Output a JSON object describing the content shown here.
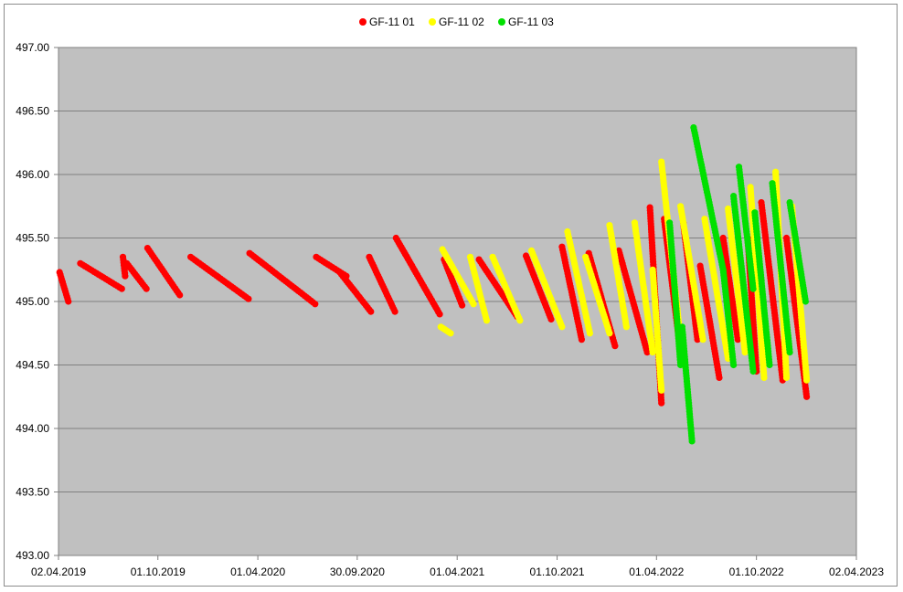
{
  "chart_data": {
    "type": "scatter",
    "title": "",
    "xlabel": "",
    "ylabel": "",
    "x_axis": {
      "type": "date",
      "min": "2019-04-02",
      "max": "2023-04-02",
      "ticks": [
        "02.04.2019",
        "01.10.2019",
        "01.04.2020",
        "30.09.2020",
        "01.04.2021",
        "01.10.2021",
        "01.04.2022",
        "01.10.2022",
        "02.04.2023"
      ]
    },
    "y_axis": {
      "min": 493.0,
      "max": 497.0,
      "step": 0.5,
      "ticks": [
        "493.00",
        "493.50",
        "494.00",
        "494.50",
        "495.00",
        "495.50",
        "496.00",
        "496.50",
        "497.00"
      ]
    },
    "grid": "horizontal",
    "plot_background": "#c0c0c0",
    "legend_position": "top",
    "series": [
      {
        "name": "GF-11 01",
        "color": "#ff0000",
        "segments": [
          [
            [
              "2019-04-04",
              495.23
            ],
            [
              "2019-04-20",
              495.0
            ]
          ],
          [
            [
              "2019-05-12",
              495.3
            ],
            [
              "2019-07-27",
              495.1
            ]
          ],
          [
            [
              "2019-07-29",
              495.35
            ],
            [
              "2019-08-02",
              495.2
            ]
          ],
          [
            [
              "2019-08-05",
              495.3
            ],
            [
              "2019-09-10",
              495.1
            ]
          ],
          [
            [
              "2019-09-12",
              495.42
            ],
            [
              "2019-11-10",
              495.05
            ]
          ],
          [
            [
              "2019-11-30",
              495.35
            ],
            [
              "2020-03-15",
              495.02
            ]
          ],
          [
            [
              "2020-03-17",
              495.38
            ],
            [
              "2020-07-15",
              494.98
            ]
          ],
          [
            [
              "2020-07-17",
              495.35
            ],
            [
              "2020-09-10",
              495.2
            ]
          ],
          [
            [
              "2020-08-29",
              495.23
            ],
            [
              "2020-10-25",
              494.92
            ]
          ],
          [
            [
              "2020-10-22",
              495.35
            ],
            [
              "2020-12-08",
              494.92
            ]
          ],
          [
            [
              "2020-12-10",
              495.5
            ],
            [
              "2021-02-28",
              494.9
            ]
          ],
          [
            [
              "2021-03-08",
              495.33
            ],
            [
              "2021-04-10",
              494.97
            ]
          ],
          [
            [
              "2021-05-11",
              495.33
            ],
            [
              "2021-07-20",
              494.88
            ]
          ],
          [
            [
              "2021-08-05",
              495.36
            ],
            [
              "2021-09-20",
              494.86
            ]
          ],
          [
            [
              "2021-10-10",
              495.43
            ],
            [
              "2021-11-15",
              494.7
            ]
          ],
          [
            [
              "2021-11-28",
              495.38
            ],
            [
              "2022-01-15",
              494.65
            ]
          ],
          [
            [
              "2022-01-22",
              495.4
            ],
            [
              "2022-03-15",
              494.6
            ]
          ],
          [
            [
              "2022-03-20",
              495.74
            ],
            [
              "2022-04-10",
              494.2
            ]
          ],
          [
            [
              "2022-04-15",
              495.65
            ],
            [
              "2022-05-15",
              494.6
            ]
          ],
          [
            [
              "2022-05-20",
              495.62
            ],
            [
              "2022-06-15",
              494.7
            ]
          ],
          [
            [
              "2022-06-20",
              495.28
            ],
            [
              "2022-07-25",
              494.4
            ]
          ],
          [
            [
              "2022-08-01",
              495.5
            ],
            [
              "2022-08-28",
              494.7
            ]
          ],
          [
            [
              "2022-09-15",
              495.5
            ],
            [
              "2022-10-01",
              494.45
            ]
          ],
          [
            [
              "2022-10-10",
              495.78
            ],
            [
              "2022-11-18",
              494.38
            ]
          ],
          [
            [
              "2022-11-25",
              495.5
            ],
            [
              "2023-01-01",
              494.25
            ]
          ]
        ]
      },
      {
        "name": "GF-11 02",
        "color": "#ffff00",
        "segments": [
          [
            [
              "2021-03-02",
              494.8
            ],
            [
              "2021-03-20",
              494.75
            ]
          ],
          [
            [
              "2021-03-05",
              495.41
            ],
            [
              "2021-05-01",
              494.98
            ]
          ],
          [
            [
              "2021-04-25",
              495.35
            ],
            [
              "2021-05-25",
              494.85
            ]
          ],
          [
            [
              "2021-06-05",
              495.35
            ],
            [
              "2021-07-25",
              494.85
            ]
          ],
          [
            [
              "2021-08-15",
              495.4
            ],
            [
              "2021-10-10",
              494.8
            ]
          ],
          [
            [
              "2021-10-20",
              495.55
            ],
            [
              "2021-11-30",
              494.75
            ]
          ],
          [
            [
              "2021-11-22",
              495.35
            ],
            [
              "2022-01-05",
              494.75
            ]
          ],
          [
            [
              "2022-01-05",
              495.6
            ],
            [
              "2022-02-05",
              494.8
            ]
          ],
          [
            [
              "2022-02-20",
              495.62
            ],
            [
              "2022-03-25",
              494.6
            ]
          ],
          [
            [
              "2022-03-25",
              495.25
            ],
            [
              "2022-04-10",
              494.3
            ]
          ],
          [
            [
              "2022-04-10",
              496.1
            ],
            [
              "2022-05-20",
              494.5
            ]
          ],
          [
            [
              "2022-05-15",
              495.75
            ],
            [
              "2022-06-25",
              494.7
            ]
          ],
          [
            [
              "2022-06-28",
              495.65
            ],
            [
              "2022-08-10",
              494.55
            ]
          ],
          [
            [
              "2022-08-10",
              495.73
            ],
            [
              "2022-09-10",
              494.6
            ]
          ],
          [
            [
              "2022-09-20",
              495.9
            ],
            [
              "2022-10-15",
              494.4
            ]
          ],
          [
            [
              "2022-11-05",
              496.02
            ],
            [
              "2022-11-25",
              494.4
            ]
          ],
          [
            [
              "2022-12-05",
              495.75
            ],
            [
              "2023-01-01",
              494.38
            ]
          ]
        ]
      },
      {
        "name": "GF-11 03",
        "color": "#00e000",
        "segments": [
          [
            [
              "2022-04-25",
              495.62
            ],
            [
              "2022-05-15",
              494.5
            ]
          ],
          [
            [
              "2022-05-18",
              494.8
            ],
            [
              "2022-06-05",
              493.9
            ]
          ],
          [
            [
              "2022-06-08",
              496.37
            ],
            [
              "2022-08-01",
              495.25
            ]
          ],
          [
            [
              "2022-08-01",
              495.25
            ],
            [
              "2022-08-20",
              494.5
            ]
          ],
          [
            [
              "2022-08-20",
              495.83
            ],
            [
              "2022-09-25",
              494.45
            ]
          ],
          [
            [
              "2022-08-30",
              496.06
            ],
            [
              "2022-09-25",
              495.1
            ]
          ],
          [
            [
              "2022-09-28",
              495.7
            ],
            [
              "2022-10-25",
              494.5
            ]
          ],
          [
            [
              "2022-10-30",
              495.93
            ],
            [
              "2022-12-01",
              494.6
            ]
          ],
          [
            [
              "2022-12-01",
              495.78
            ],
            [
              "2022-12-30",
              495.0
            ]
          ]
        ]
      }
    ]
  }
}
